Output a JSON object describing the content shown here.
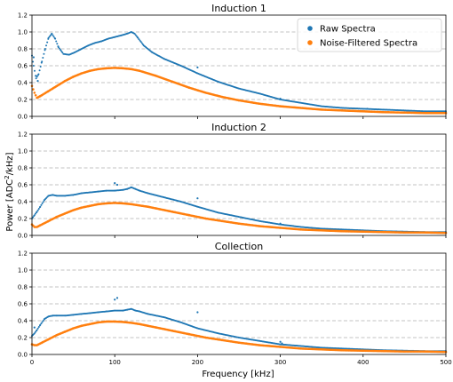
{
  "figure": {
    "ylabel_main": "Power [ADC",
    "ylabel_sup": "2",
    "ylabel_tail": "/kHz]",
    "xlabel": "Frequency [kHz]",
    "legend": {
      "raw": "Raw Spectra",
      "filtered": "Noise-Filtered Spectra"
    },
    "colors": {
      "raw": "#1f77b4",
      "filtered": "#ff7f0e"
    }
  },
  "chart_data": [
    {
      "type": "scatter",
      "title": "Induction 1",
      "xlim": [
        0,
        500
      ],
      "ylim": [
        0,
        1.2
      ],
      "x_ticks": [
        "0",
        "100",
        "200",
        "300",
        "400",
        "500"
      ],
      "y_ticks": [
        "0.0",
        "0.2",
        "0.4",
        "0.6",
        "0.8",
        "1.0",
        "1.2"
      ],
      "grid": "y-dashed",
      "legend": "top-right",
      "series": [
        {
          "name": "Raw Spectra",
          "x": [
            0,
            2,
            5,
            8,
            12,
            16,
            20,
            24,
            28,
            32,
            38,
            45,
            52,
            60,
            68,
            76,
            84,
            92,
            100,
            108,
            115,
            120,
            124,
            128,
            135,
            145,
            160,
            180,
            200,
            225,
            250,
            275,
            300,
            325,
            350,
            375,
            400,
            425,
            450,
            475,
            500
          ],
          "values": [
            0.72,
            0.6,
            0.45,
            0.5,
            0.65,
            0.8,
            0.93,
            0.98,
            0.92,
            0.82,
            0.74,
            0.73,
            0.76,
            0.8,
            0.84,
            0.87,
            0.89,
            0.92,
            0.94,
            0.96,
            0.98,
            1.0,
            0.98,
            0.93,
            0.84,
            0.76,
            0.68,
            0.6,
            0.51,
            0.41,
            0.33,
            0.27,
            0.2,
            0.16,
            0.12,
            0.1,
            0.09,
            0.08,
            0.07,
            0.06,
            0.06
          ]
        },
        {
          "name": "Noise-Filtered Spectra",
          "x": [
            0,
            3,
            6,
            10,
            20,
            30,
            40,
            50,
            60,
            70,
            80,
            90,
            100,
            110,
            120,
            130,
            140,
            150,
            170,
            190,
            210,
            230,
            250,
            275,
            300,
            325,
            350,
            375,
            400,
            425,
            450,
            475,
            500
          ],
          "values": [
            0.36,
            0.28,
            0.22,
            0.24,
            0.3,
            0.36,
            0.42,
            0.47,
            0.51,
            0.54,
            0.56,
            0.57,
            0.575,
            0.57,
            0.56,
            0.54,
            0.51,
            0.48,
            0.41,
            0.34,
            0.28,
            0.23,
            0.19,
            0.15,
            0.12,
            0.1,
            0.08,
            0.07,
            0.06,
            0.05,
            0.045,
            0.04,
            0.04
          ]
        }
      ],
      "outliers": [
        [
          2,
          0.7
        ],
        [
          5,
          0.48
        ],
        [
          7,
          0.42
        ],
        [
          200,
          0.58
        ],
        [
          300,
          0.21
        ],
        [
          405,
          0.09
        ]
      ]
    },
    {
      "type": "scatter",
      "title": "Induction 2",
      "xlim": [
        0,
        500
      ],
      "ylim": [
        0,
        1.2
      ],
      "x_ticks": [
        "0",
        "100",
        "200",
        "300",
        "400",
        "500"
      ],
      "y_ticks": [
        "0.0",
        "0.2",
        "0.4",
        "0.6",
        "0.8",
        "1.0",
        "1.2"
      ],
      "grid": "y-dashed",
      "series": [
        {
          "name": "Raw Spectra",
          "x": [
            0,
            3,
            6,
            10,
            15,
            20,
            25,
            30,
            40,
            50,
            60,
            70,
            80,
            90,
            100,
            110,
            115,
            120,
            125,
            130,
            140,
            160,
            180,
            200,
            225,
            250,
            275,
            300,
            325,
            350,
            375,
            400,
            425,
            450,
            475,
            500
          ],
          "values": [
            0.2,
            0.24,
            0.28,
            0.34,
            0.42,
            0.47,
            0.48,
            0.47,
            0.47,
            0.48,
            0.5,
            0.51,
            0.52,
            0.53,
            0.53,
            0.54,
            0.55,
            0.57,
            0.55,
            0.53,
            0.5,
            0.45,
            0.4,
            0.34,
            0.27,
            0.22,
            0.17,
            0.13,
            0.1,
            0.08,
            0.07,
            0.06,
            0.05,
            0.045,
            0.04,
            0.04
          ]
        },
        {
          "name": "Noise-Filtered Spectra",
          "x": [
            0,
            3,
            6,
            10,
            20,
            30,
            40,
            50,
            60,
            70,
            80,
            90,
            100,
            110,
            120,
            130,
            140,
            150,
            170,
            190,
            210,
            230,
            250,
            275,
            300,
            325,
            350,
            375,
            400,
            425,
            450,
            475,
            500
          ],
          "values": [
            0.13,
            0.1,
            0.1,
            0.12,
            0.17,
            0.22,
            0.26,
            0.3,
            0.33,
            0.35,
            0.37,
            0.38,
            0.385,
            0.38,
            0.37,
            0.355,
            0.34,
            0.32,
            0.28,
            0.24,
            0.2,
            0.17,
            0.14,
            0.11,
            0.09,
            0.07,
            0.06,
            0.05,
            0.045,
            0.04,
            0.035,
            0.035,
            0.03
          ]
        }
      ],
      "outliers": [
        [
          100,
          0.62
        ],
        [
          103,
          0.6
        ],
        [
          200,
          0.44
        ],
        [
          300,
          0.14
        ]
      ]
    },
    {
      "type": "scatter",
      "title": "Collection",
      "xlim": [
        0,
        500
      ],
      "ylim": [
        0,
        1.2
      ],
      "x_ticks": [
        "0",
        "100",
        "200",
        "300",
        "400",
        "500"
      ],
      "y_ticks": [
        "0.0",
        "0.2",
        "0.4",
        "0.6",
        "0.8",
        "1.0",
        "1.2"
      ],
      "grid": "y-dashed",
      "series": [
        {
          "name": "Raw Spectra",
          "x": [
            0,
            3,
            6,
            10,
            15,
            20,
            25,
            30,
            40,
            50,
            60,
            70,
            80,
            90,
            100,
            110,
            115,
            120,
            125,
            130,
            140,
            160,
            180,
            200,
            225,
            250,
            275,
            300,
            325,
            350,
            375,
            400,
            425,
            450,
            475,
            500
          ],
          "values": [
            0.22,
            0.25,
            0.29,
            0.35,
            0.42,
            0.45,
            0.46,
            0.46,
            0.46,
            0.47,
            0.48,
            0.49,
            0.5,
            0.51,
            0.52,
            0.52,
            0.53,
            0.54,
            0.52,
            0.51,
            0.48,
            0.44,
            0.38,
            0.31,
            0.25,
            0.2,
            0.16,
            0.12,
            0.1,
            0.08,
            0.07,
            0.06,
            0.05,
            0.045,
            0.04,
            0.04
          ]
        },
        {
          "name": "Noise-Filtered Spectra",
          "x": [
            0,
            3,
            6,
            10,
            20,
            30,
            40,
            50,
            60,
            70,
            80,
            90,
            100,
            110,
            120,
            130,
            140,
            150,
            170,
            190,
            210,
            230,
            250,
            275,
            300,
            325,
            350,
            375,
            400,
            425,
            450,
            475,
            500
          ],
          "values": [
            0.12,
            0.11,
            0.11,
            0.13,
            0.18,
            0.23,
            0.27,
            0.31,
            0.34,
            0.36,
            0.38,
            0.39,
            0.39,
            0.385,
            0.375,
            0.36,
            0.34,
            0.32,
            0.28,
            0.24,
            0.2,
            0.17,
            0.14,
            0.11,
            0.09,
            0.07,
            0.06,
            0.05,
            0.045,
            0.04,
            0.035,
            0.035,
            0.03
          ]
        }
      ],
      "outliers": [
        [
          3,
          0.32
        ],
        [
          100,
          0.65
        ],
        [
          103,
          0.67
        ],
        [
          200,
          0.5
        ],
        [
          300,
          0.15
        ],
        [
          302,
          0.13
        ]
      ]
    }
  ]
}
